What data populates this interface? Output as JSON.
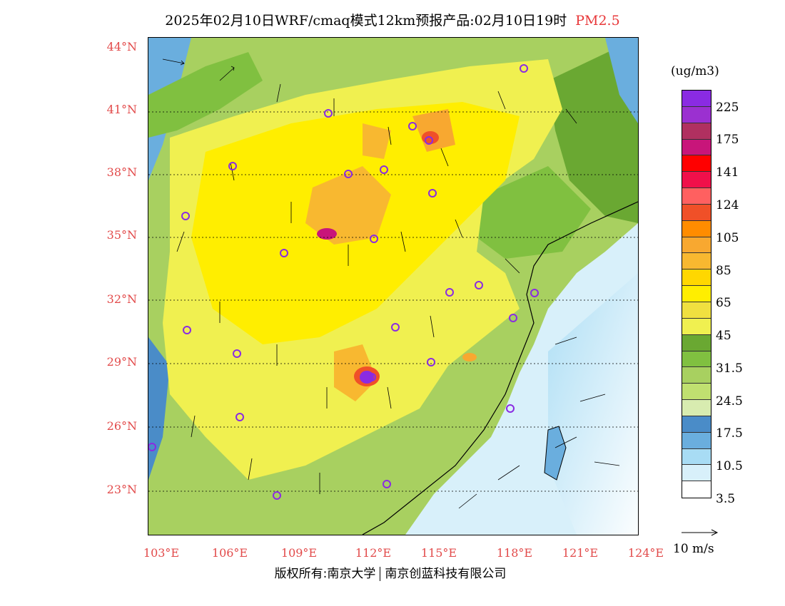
{
  "title": {
    "main": "2025年02月10日WRF/cmaq模式12km预报产品:02月10日19时",
    "pollutant": "PM2.5"
  },
  "axes": {
    "lat_labels": [
      "44°N",
      "41°N",
      "38°N",
      "35°N",
      "32°N",
      "29°N",
      "26°N",
      "23°N"
    ],
    "lon_labels": [
      "103°E",
      "106°E",
      "109°E",
      "112°E",
      "115°E",
      "118°E",
      "121°E",
      "124°E"
    ]
  },
  "legend": {
    "unit": "(ug/m3)",
    "labels": [
      "225",
      "175",
      "141",
      "124",
      "105",
      "85",
      "65",
      "45",
      "31.5",
      "24.5",
      "17.5",
      "10.5",
      "3.5"
    ],
    "colors": [
      "#8a2be2",
      "#9b30d0",
      "#b03060",
      "#c8157a",
      "#ff0000",
      "#f0104a",
      "#ff6060",
      "#f05028",
      "#ff8c00",
      "#f8a830",
      "#f8b830",
      "#ffd700",
      "#ffee00",
      "#f0e040",
      "#f0f050",
      "#6aa832",
      "#80c040",
      "#a8d060",
      "#c0e070",
      "#d8ecb0",
      "#4a8cc8",
      "#6aaede",
      "#a8dcf4",
      "#d8f0fa",
      "#ffffff"
    ],
    "vector_label": "10 m/s"
  },
  "footer": {
    "left": "版权所有:南京大学",
    "right": "南京创蓝科技有限公司"
  }
}
